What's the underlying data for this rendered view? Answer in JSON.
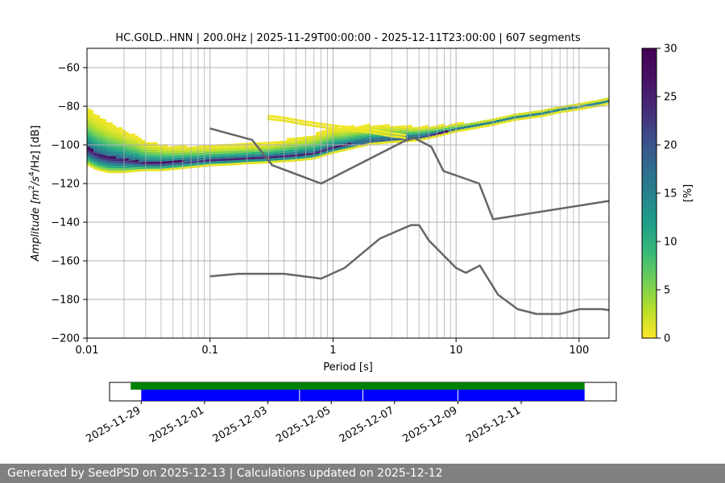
{
  "chart_data": [
    {
      "type": "heatmap",
      "title": "HC.G0LD..HNN | 200.0Hz | 2025-11-29T00:00:00 - 2025-12-11T23:00:00 | 607 segments",
      "xlabel": "Period [s]",
      "ylabel_parts": [
        "Amplitude [m",
        "2",
        "/s",
        "4",
        "/Hz] [dB]"
      ],
      "xscale": "log",
      "xlim": [
        0.01,
        175
      ],
      "ylim": [
        -200,
        -50
      ],
      "xticks": [
        0.01,
        0.1,
        1,
        10,
        100
      ],
      "xtick_labels": [
        "0.01",
        "0.1",
        "1",
        "10",
        "100"
      ],
      "yticks": [
        -60,
        -80,
        -100,
        -120,
        -140,
        -160,
        -180,
        -200
      ],
      "ytick_labels": [
        "−60",
        "−80",
        "−100",
        "−120",
        "−140",
        "−160",
        "−180",
        "−200"
      ],
      "grid": "vertical minor and major on x, horizontal major on y",
      "colorbar": {
        "label": "[%]",
        "range": [
          0,
          30
        ],
        "ticks": [
          0,
          5,
          10,
          15,
          20,
          25,
          30
        ],
        "colormap": "viridis reversed"
      },
      "density_ridge": {
        "x": [
          0.01,
          0.012,
          0.015,
          0.02,
          0.025,
          0.03,
          0.04,
          0.05,
          0.07,
          0.1,
          0.15,
          0.2,
          0.3,
          0.5,
          0.7,
          1,
          1.5,
          2,
          3,
          5,
          7,
          10,
          15,
          20,
          30,
          50,
          70,
          100,
          150,
          175
        ],
        "y": [
          -101,
          -104,
          -106,
          -107,
          -108,
          -109,
          -109,
          -108.5,
          -108,
          -107.5,
          -107,
          -106.5,
          -106,
          -105,
          -104,
          -101,
          -99,
          -97.5,
          -96.5,
          -95.5,
          -94,
          -92,
          -90,
          -88.5,
          -86,
          -84,
          -82,
          -80.5,
          -78.5,
          -77.5
        ]
      },
      "density_spread_db": {
        "x": [
          0.01,
          0.015,
          0.02,
          0.03,
          0.05,
          0.1,
          0.3,
          0.5,
          1,
          2,
          5,
          10,
          20,
          50,
          100,
          175
        ],
        "upper": [
          21,
          18,
          15,
          11,
          8,
          7,
          7,
          9,
          10,
          8,
          5,
          3,
          2,
          2,
          2,
          2
        ],
        "lower": [
          9,
          8,
          7,
          4,
          4,
          3,
          3,
          3,
          3,
          2,
          2,
          1,
          1,
          1,
          1,
          1
        ]
      },
      "density_patch": {
        "x": [
          0.3,
          0.4,
          0.6,
          1,
          2,
          3,
          4
        ],
        "y": [
          -85,
          -86,
          -88,
          -90,
          -92,
          -94,
          -95
        ]
      },
      "series": [
        {
          "color": "#666666",
          "x": [
            0.1,
            0.22,
            0.32,
            0.8,
            3.8,
            4.6,
            6.3,
            7.9,
            15.4,
            20,
            175
          ],
          "y": [
            -91.5,
            -97.4,
            -110.5,
            -120,
            -98,
            -96.5,
            -101,
            -113.5,
            -120,
            -138.5,
            -129
          ]
        },
        {
          "color": "#666666",
          "x": [
            0.1,
            0.17,
            0.4,
            0.8,
            1.24,
            2.4,
            4.3,
            5,
            6,
            10,
            12,
            15.6,
            21.9,
            31.6,
            45,
            70,
            101,
            154,
            175
          ],
          "y": [
            -168,
            -166.7,
            -166.7,
            -169.2,
            -163.7,
            -148.5,
            -141.5,
            -141.5,
            -149.4,
            -163.7,
            -166.2,
            -162.4,
            -177.5,
            -185,
            -187.5,
            -187.5,
            -185,
            -185,
            -185.5
          ]
        }
      ]
    },
    {
      "type": "timeline",
      "x_range": [
        "2025-11-28",
        "2025-12-14"
      ],
      "xtick_labels": [
        "2025-11-29",
        "2025-12-01",
        "2025-12-03",
        "2025-12-05",
        "2025-12-07",
        "2025-12-09",
        "2025-12-11"
      ],
      "tracks": [
        {
          "color": "#008000",
          "start": "2025-11-28 16:00",
          "end": "2025-12-13 00:00"
        },
        {
          "color": "#0000ff",
          "start": "2025-11-29 00:00",
          "end": "2025-12-13 00:00",
          "gaps": [
            "2025-12-04 00:00",
            "2025-12-06 00:00",
            "2025-12-09 00:00"
          ]
        }
      ]
    }
  ],
  "footer": {
    "text": "Generated by SeedPSD on 2025-12-13 | Calculations updated on 2025-12-12"
  }
}
